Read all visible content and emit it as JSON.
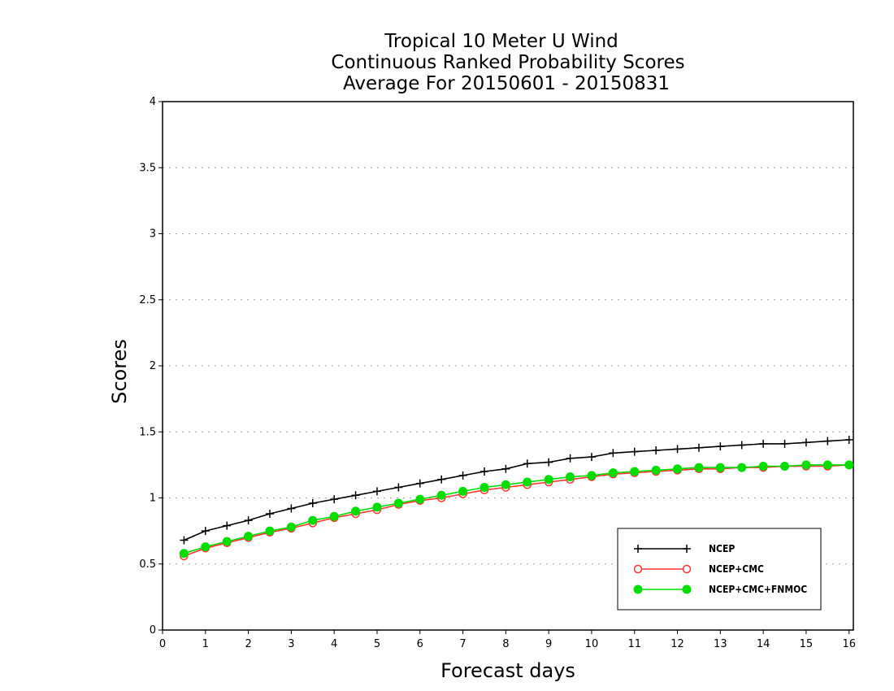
{
  "chart_data": {
    "type": "line",
    "title": [
      "Tropical 10 Meter U Wind",
      "Continuous Ranked Probability Scores",
      "Average For 20150601 - 20150831"
    ],
    "xlabel": "Forecast days",
    "ylabel": "Scores",
    "xlim": [
      0,
      16.1
    ],
    "ylim": [
      0,
      4
    ],
    "xticks": [
      "0",
      "1",
      "2",
      "3",
      "4",
      "5",
      "6",
      "7",
      "8",
      "9",
      "10",
      "11",
      "12",
      "13",
      "14",
      "15",
      "16"
    ],
    "yticks": [
      "0",
      "0.5",
      "1",
      "1.5",
      "2",
      "2.5",
      "3",
      "3.5",
      "4"
    ],
    "grid": "horizontal dotted",
    "legend_position": "bottom-right",
    "x": [
      0.5,
      1,
      1.5,
      2,
      2.5,
      3,
      3.5,
      4,
      4.5,
      5,
      5.5,
      6,
      6.5,
      7,
      7.5,
      8,
      8.5,
      9,
      9.5,
      10,
      10.5,
      11,
      11.5,
      12,
      12.5,
      13,
      13.5,
      14,
      14.5,
      15,
      15.5,
      16
    ],
    "series": [
      {
        "name": "NCEP",
        "color": "#000000",
        "marker": "plus",
        "values": [
          0.68,
          0.75,
          0.79,
          0.83,
          0.88,
          0.92,
          0.96,
          0.99,
          1.02,
          1.05,
          1.08,
          1.11,
          1.14,
          1.17,
          1.2,
          1.22,
          1.26,
          1.27,
          1.3,
          1.31,
          1.34,
          1.35,
          1.36,
          1.37,
          1.38,
          1.39,
          1.4,
          1.41,
          1.41,
          1.42,
          1.43,
          1.44
        ]
      },
      {
        "name": "NCEP+CMC",
        "color": "#ff3333",
        "marker": "open-circle",
        "values": [
          0.56,
          0.62,
          0.66,
          0.7,
          0.74,
          0.77,
          0.81,
          0.85,
          0.88,
          0.91,
          0.95,
          0.98,
          1.0,
          1.03,
          1.06,
          1.08,
          1.1,
          1.12,
          1.14,
          1.16,
          1.18,
          1.19,
          1.2,
          1.21,
          1.22,
          1.22,
          1.23,
          1.23,
          1.24,
          1.24,
          1.24,
          1.25
        ]
      },
      {
        "name": "NCEP+CMC+FNMOC",
        "color": "#00dd00",
        "marker": "filled-circle",
        "values": [
          0.58,
          0.63,
          0.67,
          0.71,
          0.75,
          0.78,
          0.83,
          0.86,
          0.9,
          0.93,
          0.96,
          0.99,
          1.02,
          1.05,
          1.08,
          1.1,
          1.12,
          1.14,
          1.16,
          1.17,
          1.19,
          1.2,
          1.21,
          1.22,
          1.23,
          1.23,
          1.23,
          1.24,
          1.24,
          1.25,
          1.25,
          1.25
        ]
      }
    ]
  }
}
